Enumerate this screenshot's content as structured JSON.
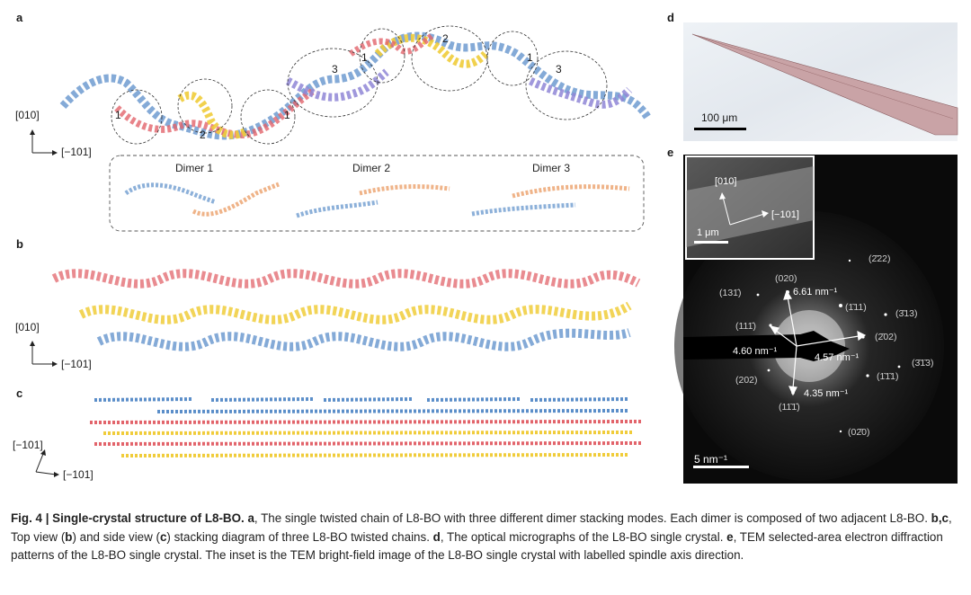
{
  "panels": {
    "a": {
      "label": "a",
      "axis_y": "[010]",
      "axis_x": "[−101]",
      "dimer_markers": [
        "1",
        "2",
        "1",
        "3",
        "1",
        "2",
        "1",
        "3"
      ],
      "dimers": [
        "Dimer 1",
        "Dimer 2",
        "Dimer 3"
      ]
    },
    "b": {
      "label": "b",
      "axis_y": "[010]",
      "axis_x": "[−101]"
    },
    "c": {
      "label": "c",
      "axis_y": "[−101]",
      "axis_x": "[−101]"
    },
    "d": {
      "label": "d",
      "scale": "100 μm"
    },
    "e": {
      "label": "e",
      "inset_axis_y": "[010]",
      "inset_axis_x": "[−101]",
      "inset_scale": "1 μm",
      "scale": "5 nm⁻¹",
      "spacings": [
        "6.61 nm⁻¹",
        "4.60 nm⁻¹",
        "4.57 nm⁻¹",
        "4.35 nm⁻¹"
      ],
      "indices": [
        "(2̄22)",
        "(020)",
        "(131̄)",
        "(1̄11)",
        "(3̄13)",
        "(111̄)",
        "(2̄02)",
        "(3̄1̄3)",
        "(202)",
        "(1̄1̄1)",
        "(11̄1̄)",
        "(02̄0)"
      ]
    }
  },
  "caption": {
    "fig": "Fig. 4 | Single-crystal structure of L8-BO.",
    "a_label": "a",
    "a_text": ", The single twisted chain of L8-BO with three different dimer stacking modes. Each dimer is composed of two adjacent L8-BO.",
    "bc_label": "b,c",
    "bc_text1": ", Top view (",
    "b_ref": "b",
    "bc_text2": ") and side view (",
    "c_ref": "c",
    "bc_text3": ") stacking diagram of three L8-BO twisted chains.",
    "d_label": "d",
    "d_text": ", The optical micrographs of the L8-BO single crystal.",
    "e_label": "e",
    "e_text": ", TEM selected-area electron diffraction patterns of the L8-BO single crystal. The inset is the TEM bright-field image of the L8-BO single crystal with labelled spindle axis direction."
  },
  "colors": {
    "blue": "#5b8ec9",
    "red": "#e2646b",
    "yellow": "#f0cc3a",
    "purple": "#8f86d6",
    "orange": "#e89355"
  }
}
